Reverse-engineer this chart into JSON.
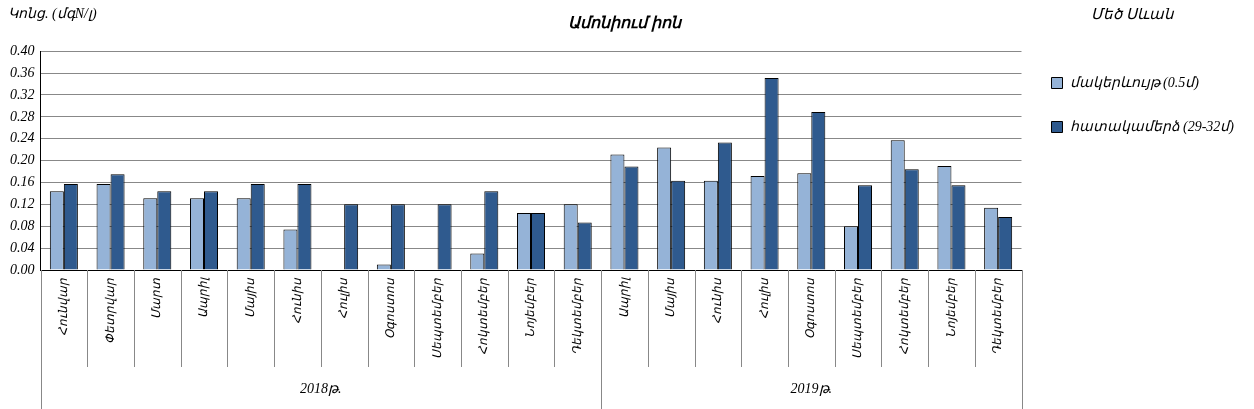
{
  "chart_data": {
    "type": "bar",
    "title": "Ամոնիում իոն",
    "ylabel": "Կոնց. (մգN/լ)",
    "legend_title": "Մեծ Սևան",
    "categories": [
      "Հունվար",
      "Փետրվար",
      "Մարտ",
      "Ապրիլ",
      "Մայիս",
      "Հունիս",
      "Հուլիս",
      "Օգոստոս",
      "Սեպտեմբեր",
      "Հոկտեմբեր",
      "Նոյեմբեր",
      "Դեկտեմբեր",
      "Ապրիլ",
      "Մայիս",
      "Հունիս",
      "Հուլիս",
      "Օգոստոս",
      "Սեպտեմբեր",
      "Հոկտեմբեր",
      "Նոյեմբեր",
      "Դեկտեմբեր"
    ],
    "series": [
      {
        "name": "մակերևույթ (0.5մ)",
        "color": "#95b3d7",
        "values": [
          0.144,
          0.157,
          0.131,
          0.131,
          0.131,
          0.074,
          null,
          0.01,
          null,
          0.03,
          0.104,
          0.12,
          0.211,
          0.224,
          0.163,
          0.172,
          0.177,
          0.08,
          0.237,
          0.19,
          0.114
        ]
      },
      {
        "name": "հատակամերձ (29-32մ)",
        "color": "#2f5a8e",
        "values": [
          0.157,
          0.175,
          0.144,
          0.144,
          0.157,
          0.157,
          0.12,
          0.12,
          0.12,
          0.144,
          0.104,
          0.087,
          0.189,
          0.163,
          0.233,
          0.351,
          0.289,
          0.155,
          0.184,
          0.155,
          0.097
        ]
      }
    ],
    "ylim": [
      0,
      0.4
    ],
    "yticks": [
      {
        "value": 0,
        "label": "0.00"
      },
      {
        "value": 0.04,
        "label": "0.04"
      },
      {
        "value": 0.08,
        "label": "0.08"
      },
      {
        "value": 0.12,
        "label": "0.12"
      },
      {
        "value": 0.16,
        "label": "0.16"
      },
      {
        "value": 0.2,
        "label": "0.20"
      },
      {
        "value": 0.24,
        "label": "0.24"
      },
      {
        "value": 0.28,
        "label": "0.28"
      },
      {
        "value": 0.32,
        "label": "0.32"
      },
      {
        "value": 0.36,
        "label": "0.36"
      },
      {
        "value": 0.4,
        "label": "0.40"
      }
    ],
    "grid": "y",
    "legend": "right",
    "annotations": [
      "2018թ.",
      "2019թ."
    ]
  }
}
